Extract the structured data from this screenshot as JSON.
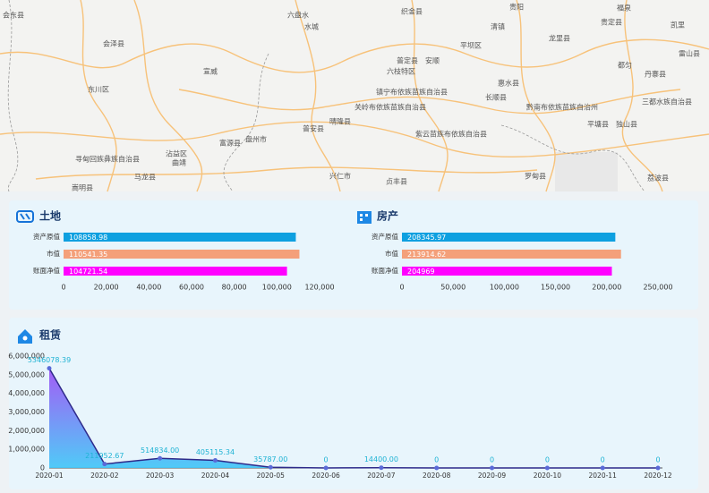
{
  "map_labels": [
    "会东县",
    "会泽县",
    "东川区",
    "宣威",
    "六盘水",
    "水城",
    "织金县",
    "清镇",
    "贵阳",
    "贵定县",
    "福泉",
    "凯里",
    "雷山县",
    "龙里县",
    "平坝区",
    "安顺",
    "普定县",
    "六枝特区",
    "惠水县",
    "长顺县",
    "镇宁布依族苗族自治县",
    "关岭布依族苗族自治县",
    "黔南布依族苗族自治州",
    "三都水族自治县",
    "丹寨县",
    "都匀",
    "平塘县",
    "独山县",
    "晴隆县",
    "普安县",
    "紫云苗族布依族自治县",
    "盘州市",
    "富源县",
    "沾益区",
    "曲靖",
    "马龙县",
    "寻甸回族彝族自治县",
    "兴仁市",
    "贞丰县",
    "罗甸县",
    "荔波县",
    "嵩明县"
  ],
  "chart_data": [
    {
      "type": "hbar",
      "title": "土地",
      "categories": [
        "资产原值",
        "市值",
        "账面净值"
      ],
      "values": [
        108858.98,
        110541.35,
        104721.54
      ],
      "colors": [
        "#0ea0e0",
        "#f4a07a",
        "#ff00ff"
      ],
      "xlim": [
        0,
        120000
      ],
      "xticks": [
        0,
        {
          "value": 20000,
          "label": "20,000"
        },
        {
          "value": 40000,
          "label": "40,000"
        },
        {
          "value": 60000,
          "label": "60,000"
        },
        {
          "value": 80000,
          "label": "80,000"
        },
        {
          "value": 100000,
          "label": "100,000"
        },
        {
          "value": 120000,
          "label": "120,000"
        }
      ]
    },
    {
      "type": "hbar",
      "title": "房产",
      "categories": [
        "资产原值",
        "市值",
        "账面净值"
      ],
      "values": [
        208345.97,
        213914.62,
        204969
      ],
      "colors": [
        "#0ea0e0",
        "#f4a07a",
        "#ff00ff"
      ],
      "xlim": [
        0,
        250000
      ],
      "xticks": [
        0,
        {
          "value": 50000,
          "label": "50,000"
        },
        {
          "value": 100000,
          "label": "100,000"
        },
        {
          "value": 150000,
          "label": "150,000"
        },
        {
          "value": 200000,
          "label": "200,000"
        },
        {
          "value": 250000,
          "label": "250,000"
        }
      ]
    },
    {
      "type": "area",
      "title": "租赁",
      "categories": [
        "2020-01",
        "2020-02",
        "2020-03",
        "2020-04",
        "2020-05",
        "2020-06",
        "2020-07",
        "2020-08",
        "2020-09",
        "2020-10",
        "2020-11",
        "2020-12"
      ],
      "values": [
        5346078.39,
        211952.67,
        514834,
        405115.34,
        35787,
        0,
        14400,
        0,
        0,
        0,
        0,
        0
      ],
      "value_labels": [
        "5346078.39",
        "211952.67",
        "514834.00",
        "405115.34",
        "35787.00",
        "0",
        "14400.00",
        "0",
        "0",
        "0",
        "0",
        "0"
      ],
      "color": "#2e2a8a",
      "ylim": [
        0,
        6000000
      ],
      "yticks": [
        0,
        {
          "value": 1000000,
          "label": "1,000,000"
        },
        {
          "value": 2000000,
          "label": "2,000,000"
        },
        {
          "value": 3000000,
          "label": "3,000,000"
        },
        {
          "value": 4000000,
          "label": "4,000,000"
        },
        {
          "value": 5000000,
          "label": "5,000,000"
        },
        {
          "value": 6000000,
          "label": "6,000,000"
        }
      ]
    }
  ]
}
